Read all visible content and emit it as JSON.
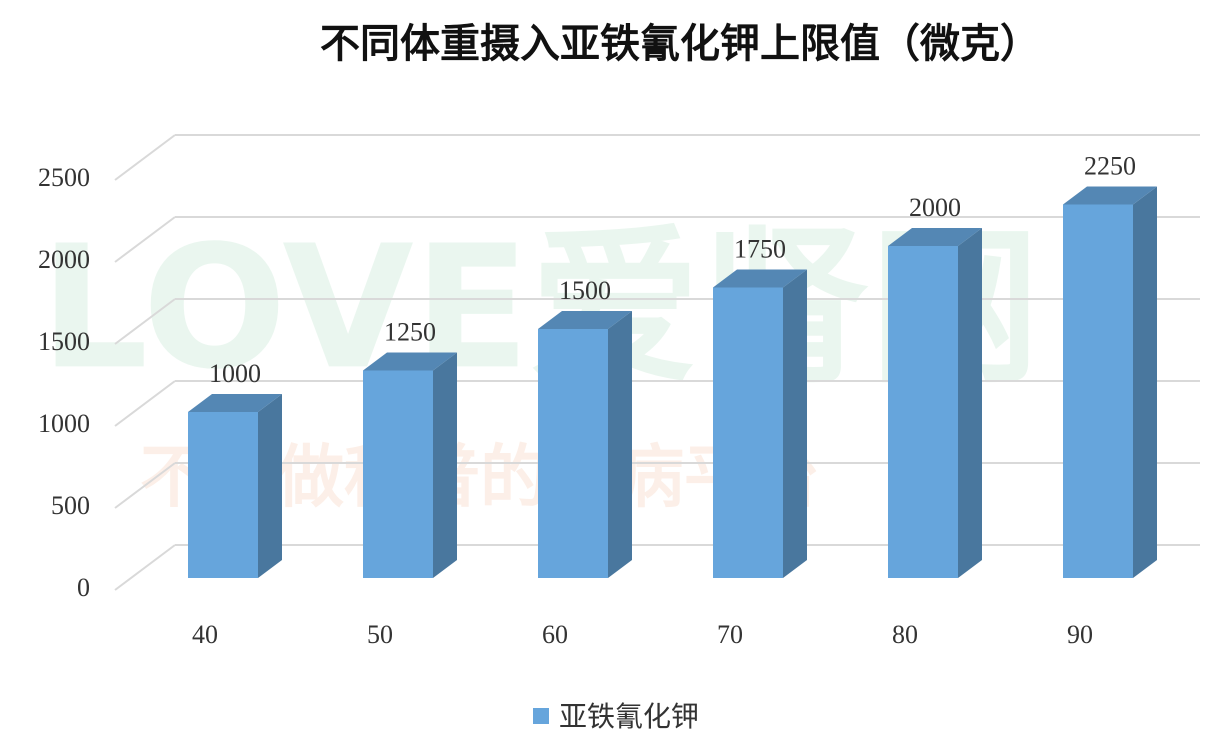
{
  "chart_data": {
    "type": "bar3d",
    "title": "不同体重摄入亚铁氰化钾上限值（微克）",
    "categories": [
      "40",
      "50",
      "60",
      "70",
      "80",
      "90"
    ],
    "series": [
      {
        "name": "亚铁氰化钾",
        "color": "#66a5dc",
        "values": [
          1000,
          1250,
          1500,
          1750,
          2000,
          2250
        ]
      }
    ],
    "ylim": [
      0,
      2500
    ],
    "yticks": [
      0,
      500,
      1000,
      1500,
      2000,
      2500
    ],
    "grid": true,
    "data_labels": true,
    "legend": "bottom",
    "watermark": [
      "LOVE爱肾网",
      "不只做科普的肾病平台"
    ]
  }
}
